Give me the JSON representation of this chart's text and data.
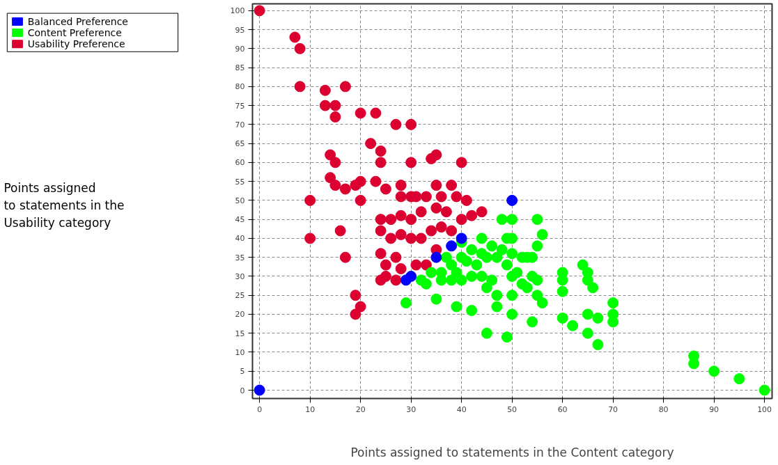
{
  "chart_data": {
    "type": "scatter",
    "xlabel": "Points assigned to statements in the Content category",
    "annotations": [
      "Points assigned\nto statements in the\nUsability category"
    ],
    "xlim": [
      -1.4,
      101.5
    ],
    "ylim": [
      -2.2,
      101.8
    ],
    "xticks": [
      0,
      10,
      20,
      30,
      40,
      50,
      60,
      70,
      80,
      90,
      100
    ],
    "yticks": [
      0,
      5,
      10,
      15,
      20,
      25,
      30,
      35,
      40,
      45,
      50,
      55,
      60,
      65,
      70,
      75,
      80,
      85,
      90,
      95,
      100
    ],
    "grid": true,
    "legend": "top left",
    "marker": "circle",
    "series": [
      {
        "name": "Balanced Preference",
        "color": "#0000ff",
        "x": [
          0,
          29,
          30,
          35,
          38,
          40,
          50
        ],
        "values": [
          0,
          29,
          30,
          35,
          38,
          40,
          50
        ]
      },
      {
        "name": "Content Preference",
        "color": "#00ff00",
        "x": [
          29,
          32,
          33,
          35,
          39,
          42,
          45,
          49,
          47,
          50,
          50,
          54,
          56,
          55,
          60,
          60,
          60,
          60,
          62,
          64,
          65,
          65,
          66,
          65,
          65,
          67,
          67,
          70,
          70,
          70,
          86,
          86,
          90,
          95,
          100,
          48,
          50,
          55,
          56,
          50,
          49,
          44,
          55,
          53,
          36,
          38,
          40,
          42,
          44,
          46,
          48,
          50,
          52,
          54,
          38,
          40,
          42,
          44,
          50,
          52,
          53,
          54,
          55,
          34,
          36,
          40,
          46,
          47,
          45,
          41,
          43,
          47,
          49,
          51,
          39,
          37,
          45
        ],
        "values": [
          23,
          29,
          28,
          24,
          22,
          21,
          15,
          14,
          22,
          20,
          25,
          18,
          23,
          25,
          31,
          29,
          26,
          19,
          17,
          33,
          31,
          29,
          27,
          20,
          15,
          19,
          12,
          23,
          20,
          18,
          9,
          7,
          5,
          3,
          0,
          45,
          45,
          45,
          41,
          40,
          40,
          40,
          38,
          35,
          31,
          33,
          35,
          37,
          36,
          38,
          37,
          36,
          35,
          35,
          29,
          29,
          30,
          30,
          30,
          28,
          27,
          30,
          29,
          31,
          29,
          39,
          29,
          25,
          27,
          34,
          33,
          35,
          33,
          31,
          31,
          35,
          35
        ]
      },
      {
        "name": "Usability Preference",
        "color": "#dc0030",
        "x": [
          0,
          7,
          8,
          8,
          13,
          17,
          13,
          15,
          15,
          20,
          23,
          27,
          30,
          22,
          24,
          14,
          15,
          24,
          30,
          34,
          35,
          40,
          14,
          15,
          17,
          19,
          20,
          23,
          25,
          28,
          31,
          35,
          38,
          10,
          20,
          28,
          30,
          33,
          36,
          39,
          41,
          24,
          26,
          28,
          30,
          32,
          35,
          37,
          40,
          42,
          44,
          24,
          26,
          28,
          30,
          32,
          34,
          36,
          38,
          16,
          10,
          24,
          25,
          27,
          28,
          24,
          25,
          27,
          31,
          33,
          35,
          17,
          19,
          20,
          19
        ],
        "values": [
          100,
          93,
          90,
          80,
          79,
          80,
          75,
          75,
          72,
          73,
          73,
          70,
          70,
          65,
          63,
          62,
          60,
          60,
          60,
          61,
          62,
          60,
          56,
          54,
          53,
          54,
          55,
          55,
          53,
          54,
          51,
          54,
          54,
          50,
          50,
          51,
          51,
          51,
          51,
          51,
          50,
          45,
          45,
          46,
          45,
          47,
          48,
          47,
          45,
          46,
          47,
          42,
          40,
          41,
          40,
          40,
          42,
          43,
          42,
          42,
          40,
          36,
          33,
          35,
          32,
          29,
          30,
          29,
          33,
          33,
          37,
          35,
          25,
          22,
          20
        ]
      }
    ]
  }
}
